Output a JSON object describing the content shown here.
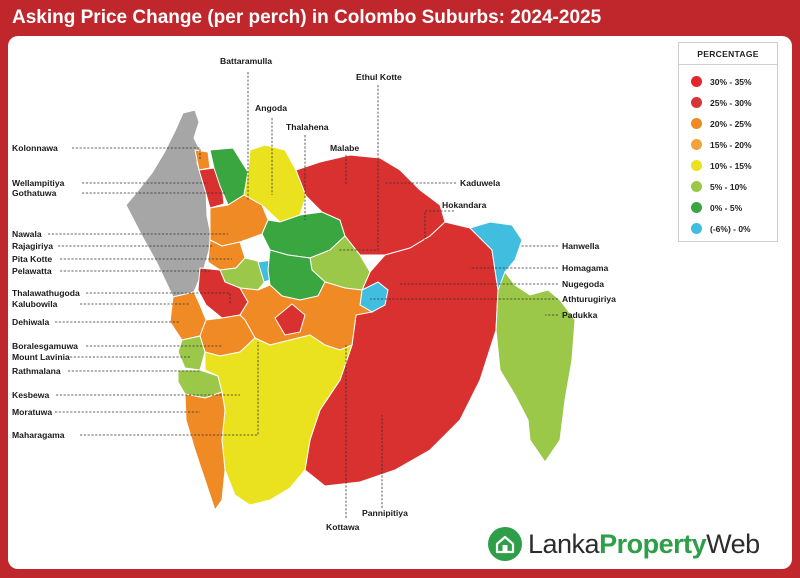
{
  "title": "Asking Price Change (per perch) in Colombo Suburbs: 2024-2025",
  "legend": {
    "title": "PERCENTAGE",
    "items": [
      {
        "label": "30% - 35%",
        "color": "#e3262b"
      },
      {
        "label": "25% - 30%",
        "color": "#d73535"
      },
      {
        "label": "20% - 25%",
        "color": "#ef8a24"
      },
      {
        "label": "15% - 20%",
        "color": "#f4a23a"
      },
      {
        "label": "10% - 15%",
        "color": "#ebe21f"
      },
      {
        "label": "5% - 10%",
        "color": "#9cc84a"
      },
      {
        "label": "0% - 5%",
        "color": "#3aa63f"
      },
      {
        "label": "(-6%) - 0%",
        "color": "#41bde0"
      }
    ]
  },
  "map_colors": {
    "colombo": "#a6a6a6",
    "red": "#d93030",
    "orange": "#ef8a24",
    "yellow": "#ebe21f",
    "lightgreen": "#9cc84a",
    "green": "#3aa63f",
    "cyan": "#41bde0"
  },
  "labels": {
    "battaramulla": "Battaramulla",
    "ethul_kotte": "Ethul Kotte",
    "angoda": "Angoda",
    "thalahena": "Thalahena",
    "malabe": "Malabe",
    "kolonnawa": "Kolonnawa",
    "wellampitiya": "Wellampitiya",
    "gothatuwa": "Gothatuwa",
    "kaduwela": "Kaduwela",
    "hokandara": "Hokandara",
    "nawala": "Nawala",
    "rajagiriya": "Rajagiriya",
    "pita_kotte": "Pita Kotte",
    "pelawatta": "Pelawatta",
    "hanwella": "Hanwella",
    "homagama": "Homagama",
    "nugegoda": "Nugegoda",
    "athturugiriya": "Athturugiriya",
    "padukka": "Padukka",
    "thalawathugoda": "Thalawathugoda",
    "kalubowila": "Kalubowila",
    "dehiwala": "Dehiwala",
    "boralesgamuwa": "Boralesgamuwa",
    "mount_lavinia": "Mount Lavinia",
    "rathmalana": "Rathmalana",
    "kesbewa": "Kesbewa",
    "moratuwa": "Moratuwa",
    "maharagama": "Maharagama",
    "pannipitiya": "Pannipitiya",
    "kottawa": "Kottawa"
  },
  "logo": {
    "part1": "Lanka",
    "part2": "Property",
    "part3": "Web"
  }
}
